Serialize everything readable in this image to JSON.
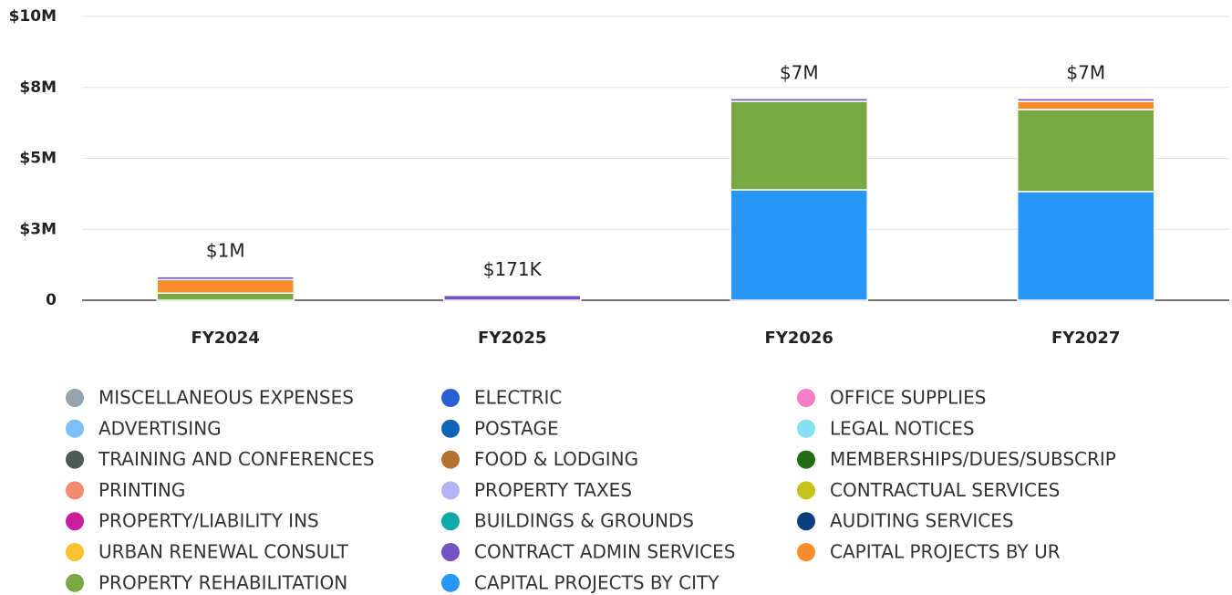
{
  "chart_data": {
    "type": "stacked_bar",
    "categories": [
      "FY2024",
      "FY2025",
      "FY2026",
      "FY2027"
    ],
    "ylim": [
      0,
      10000000
    ],
    "yticks": [
      0,
      {
        "value": 2500000,
        "label": "$3M"
      },
      {
        "value": 5000000,
        "label": "$5M"
      },
      {
        "value": 7500000,
        "label": "$8M"
      },
      {
        "value": 10000000,
        "label": "$10M"
      }
    ],
    "grid": true,
    "totals": [
      830000,
      171000,
      7110000,
      7110000
    ],
    "total_labels": [
      "$1M",
      "$171K",
      "$7M",
      "$7M"
    ],
    "series": [
      {
        "name": "MISCELLANEOUS EXPENSES",
        "color": "#94a3ad",
        "values": [
          0,
          0,
          0,
          0
        ]
      },
      {
        "name": "ELECTRIC",
        "color": "#2b5fd4",
        "values": [
          0,
          0,
          0,
          0
        ]
      },
      {
        "name": "OFFICE SUPPLIES",
        "color": "#f77fc9",
        "values": [
          0,
          0,
          0,
          0
        ]
      },
      {
        "name": "ADVERTISING",
        "color": "#7cc0f7",
        "values": [
          0,
          0,
          0,
          0
        ]
      },
      {
        "name": "POSTAGE",
        "color": "#0f66b8",
        "values": [
          0,
          0,
          0,
          0
        ]
      },
      {
        "name": "LEGAL NOTICES",
        "color": "#84e0f0",
        "values": [
          0,
          0,
          0,
          0
        ]
      },
      {
        "name": "TRAINING AND CONFERENCES",
        "color": "#4c5b55",
        "values": [
          0,
          0,
          0,
          0
        ]
      },
      {
        "name": "FOOD & LODGING",
        "color": "#b8702f",
        "values": [
          0,
          0,
          0,
          0
        ]
      },
      {
        "name": "MEMBERSHIPS/DUES/SUBSCRIP",
        "color": "#1f6e12",
        "values": [
          0,
          0,
          0,
          0
        ]
      },
      {
        "name": "PRINTING",
        "color": "#f58a73",
        "values": [
          0,
          0,
          0,
          0
        ]
      },
      {
        "name": "PROPERTY TAXES",
        "color": "#b6b3f7",
        "values": [
          0,
          0,
          0,
          0
        ]
      },
      {
        "name": "CONTRACTUAL SERVICES",
        "color": "#c4c41a",
        "values": [
          0,
          0,
          0,
          0
        ]
      },
      {
        "name": "PROPERTY/LIABILITY INS",
        "color": "#c91d9c",
        "values": [
          0,
          0,
          0,
          0
        ]
      },
      {
        "name": "BUILDINGS & GROUNDS",
        "color": "#0eaaaa",
        "values": [
          0,
          0,
          0,
          0
        ]
      },
      {
        "name": "AUDITING SERVICES",
        "color": "#0d3f7e",
        "values": [
          0,
          0,
          0,
          0
        ]
      },
      {
        "name": "URBAN RENEWAL CONSULT",
        "color": "#fbc133",
        "values": [
          0,
          0,
          0,
          0
        ]
      },
      {
        "name": "CONTRACT ADMIN SERVICES",
        "color": "#7452c1",
        "values": [
          100000,
          171000,
          100000,
          100000
        ]
      },
      {
        "name": "CAPITAL PROJECTS BY UR",
        "color": "#fb8c2b",
        "values": [
          480000,
          0,
          0,
          290000
        ]
      },
      {
        "name": "PROPERTY REHABILITATION",
        "color": "#78a943",
        "values": [
          250000,
          0,
          3120000,
          2890000
        ]
      },
      {
        "name": "CAPITAL PROJECTS BY CITY",
        "color": "#2896f5",
        "values": [
          0,
          0,
          3890000,
          3830000
        ]
      }
    ]
  }
}
